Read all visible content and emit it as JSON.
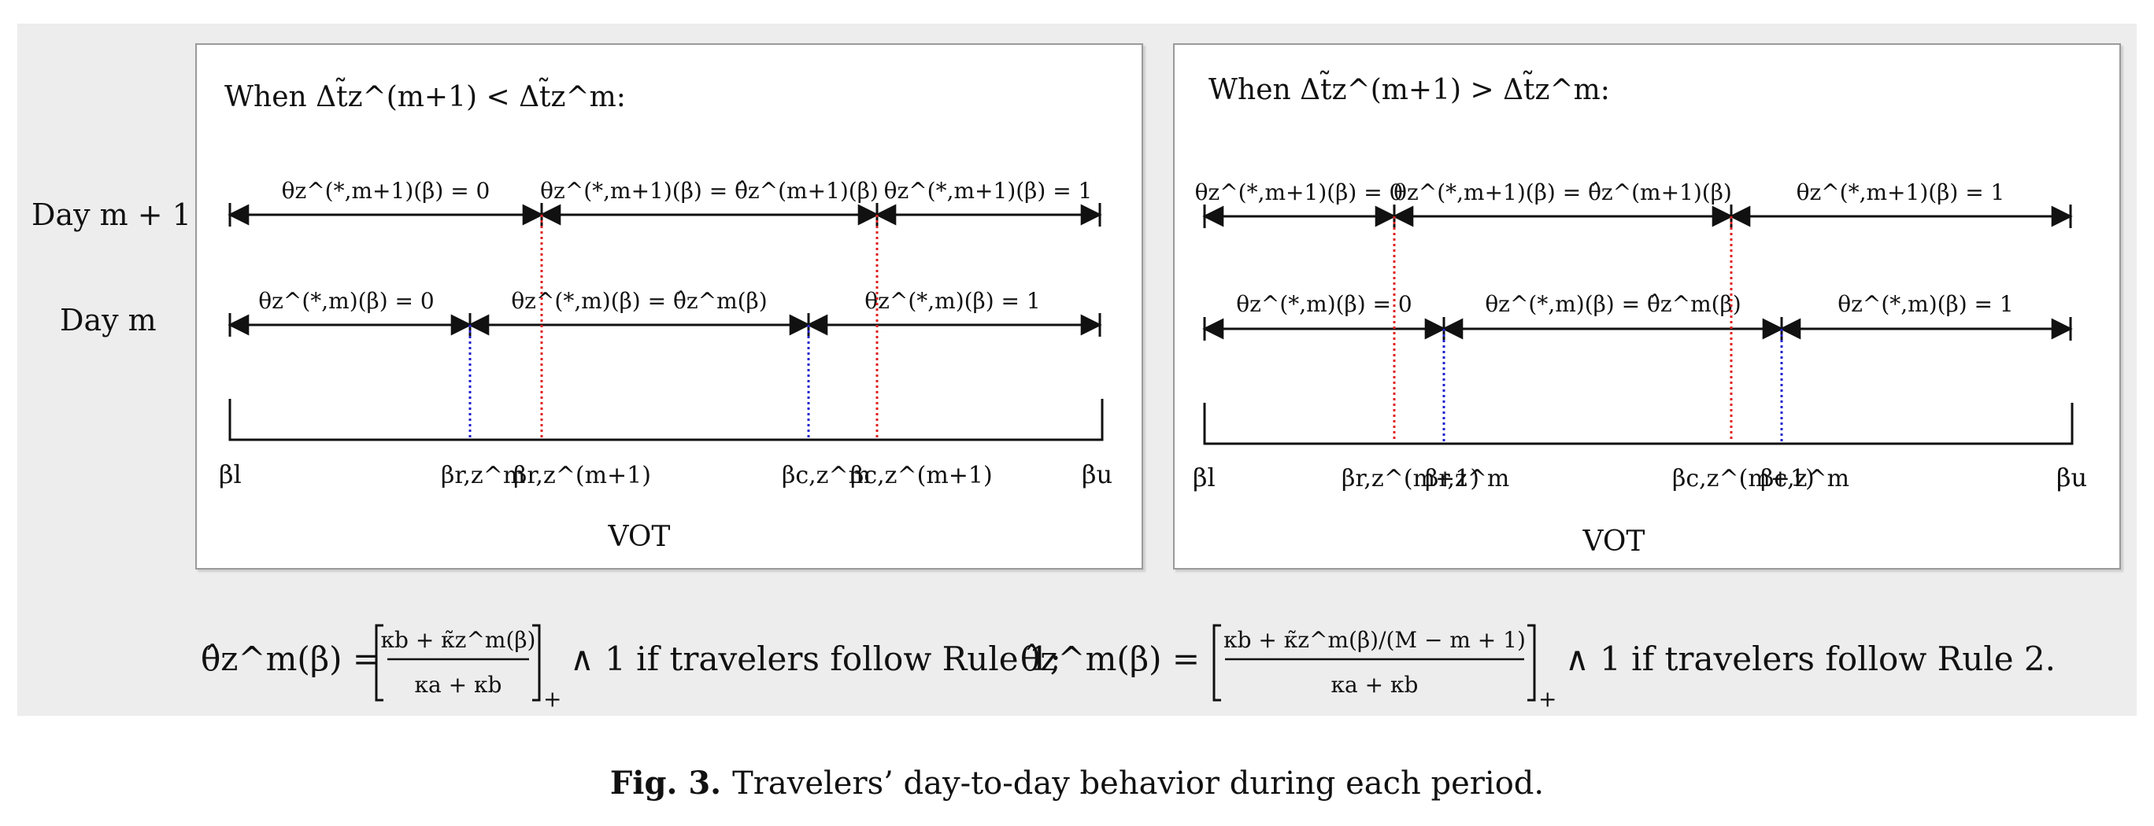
{
  "row_labels": {
    "day_next": "Day m + 1",
    "day_current": "Day m"
  },
  "panels": [
    {
      "condition": "When Δt̃z^(m+1) < Δt̃z^m:",
      "day_next_segments": [
        "θz^(*,m+1)(β) = 0",
        "θz^(*,m+1)(β) = θ̂z^(m+1)(β)",
        "θz^(*,m+1)(β) = 1"
      ],
      "day_current_segments": [
        "θz^(*,m)(β) = 0",
        "θz^(*,m)(β) = θ̂z^m(β)",
        "θz^(*,m)(β) = 1"
      ],
      "axis_labels": [
        "βl",
        "βr,z^m",
        "βr,z^(m+1)",
        "βc,z^m",
        "βc,z^(m+1)",
        "βu"
      ],
      "axis_title": "VOT"
    },
    {
      "condition": "When Δt̃z^(m+1) > Δt̃z^m:",
      "day_next_segments": [
        "θz^(*,m+1)(β) = 0",
        "θz^(*,m+1)(β) = θ̂z^(m+1)(β)",
        "θz^(*,m+1)(β) = 1"
      ],
      "day_current_segments": [
        "θz^(*,m)(β) = 0",
        "θz^(*,m)(β) = θ̂z^m(β)",
        "θz^(*,m)(β) = 1"
      ],
      "axis_labels": [
        "βl",
        "βr,z^(m+1)",
        "βr,z^m",
        "βc,z^(m+1)",
        "βc,z^m",
        "βu"
      ],
      "axis_title": "VOT"
    }
  ],
  "formula": {
    "part1_lhs": "θ̂z^m(β) =",
    "part1_num": "κb + κ̃z^m(β)",
    "part1_den": "κa + κb",
    "part1_tail": "∧ 1 if travelers follow Rule 1;",
    "part2_lhs": "θ̂z^m(β) =",
    "part2_num": "κb + κ̃z^m(β)/(M − m + 1)",
    "part2_den": "κa + κb",
    "part2_tail": "∧ 1 if travelers follow Rule 2."
  },
  "caption": {
    "label": "Fig. 3.",
    "text": "Travelers’ day-to-day behavior during each period."
  },
  "colors": {
    "red_line": "#e02020",
    "blue_line": "#2020d0",
    "panel_border": "#9a9a9a",
    "figure_bg": "#ededed"
  }
}
